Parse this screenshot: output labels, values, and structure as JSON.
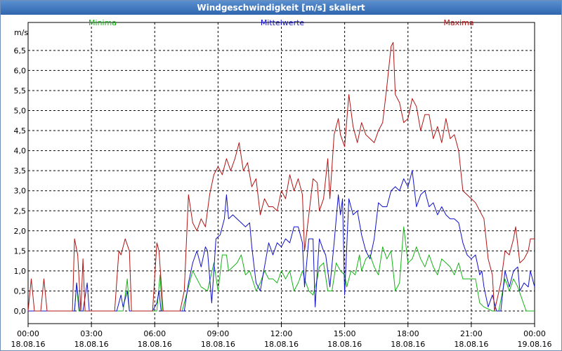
{
  "window": {
    "title": "Windgeschwindigkeit [m/s] skaliert"
  },
  "colors": {
    "minima": "#16b316",
    "mittelwerte": "#1111c8",
    "maxima": "#b01414",
    "grid": "#000000"
  },
  "chart_data": {
    "type": "line",
    "title": "Windgeschwindigkeit [m/s] skaliert",
    "ylabel": "m/s",
    "ylim": [
      0,
      7
    ],
    "y_ticks": [
      "0,0",
      "0,5",
      "1,0",
      "1,5",
      "2,0",
      "2,5",
      "3,0",
      "3,5",
      "4,0",
      "4,5",
      "5,0",
      "5,5",
      "6,0",
      "6,5"
    ],
    "x_ticks": [
      {
        "time": "00:00",
        "date": "18.08.16"
      },
      {
        "time": "03:00",
        "date": "18.08.16"
      },
      {
        "time": "06:00",
        "date": "18.08.16"
      },
      {
        "time": "09:00",
        "date": "18.08.16"
      },
      {
        "time": "12:00",
        "date": "18.08.16"
      },
      {
        "time": "15:00",
        "date": "18.08.16"
      },
      {
        "time": "18:00",
        "date": "18.08.16"
      },
      {
        "time": "21:00",
        "date": "18.08.16"
      },
      {
        "time": "00:00",
        "date": "19.08.16"
      }
    ],
    "x_unit": "hours since 18.08.16 00:00",
    "xlim": [
      0,
      24
    ],
    "series": [
      {
        "name": "Minima",
        "points": [
          [
            0,
            0
          ],
          [
            2.2,
            0
          ],
          [
            2.3,
            0.7
          ],
          [
            2.4,
            0
          ],
          [
            4.5,
            0
          ],
          [
            4.7,
            0.8
          ],
          [
            4.8,
            0
          ],
          [
            6.1,
            0
          ],
          [
            6.25,
            0.9
          ],
          [
            6.35,
            0
          ],
          [
            7.3,
            0
          ],
          [
            7.6,
            0.6
          ],
          [
            7.8,
            1.0
          ],
          [
            8,
            0.8
          ],
          [
            8.2,
            0.6
          ],
          [
            8.5,
            0.5
          ],
          [
            8.8,
            1.2
          ],
          [
            9,
            0.5
          ],
          [
            9.2,
            1.4
          ],
          [
            9.4,
            1.4
          ],
          [
            9.5,
            1.0
          ],
          [
            9.7,
            1.1
          ],
          [
            9.9,
            1.2
          ],
          [
            10.1,
            1.4
          ],
          [
            10.3,
            0.9
          ],
          [
            10.5,
            1.0
          ],
          [
            10.8,
            0.5
          ],
          [
            11,
            0.7
          ],
          [
            11.2,
            1.0
          ],
          [
            11.4,
            0.8
          ],
          [
            11.6,
            0.8
          ],
          [
            11.8,
            0.7
          ],
          [
            12,
            1.0
          ],
          [
            12.2,
            0.8
          ],
          [
            12.4,
            1.0
          ],
          [
            12.6,
            0.5
          ],
          [
            12.8,
            0.7
          ],
          [
            13,
            1.0
          ],
          [
            13.1,
            0.8
          ],
          [
            13.3,
            0.5
          ],
          [
            13.5,
            0.4
          ],
          [
            13.7,
            0.8
          ],
          [
            13.8,
            1.1
          ],
          [
            14,
            1.2
          ],
          [
            14.2,
            0.5
          ],
          [
            14.4,
            0.5
          ],
          [
            14.6,
            1.2
          ],
          [
            14.8,
            1.0
          ],
          [
            15,
            0.9
          ],
          [
            15.1,
            0.6
          ],
          [
            15.3,
            1.0
          ],
          [
            15.5,
            0.9
          ],
          [
            15.7,
            1.4
          ],
          [
            15.8,
            1.0
          ],
          [
            16,
            1.3
          ],
          [
            16.2,
            1.4
          ],
          [
            16.4,
            1.1
          ],
          [
            16.6,
            0.9
          ],
          [
            16.8,
            1.6
          ],
          [
            17,
            1.3
          ],
          [
            17.2,
            1.5
          ],
          [
            17.4,
            0.5
          ],
          [
            17.6,
            0.7
          ],
          [
            17.8,
            2.1
          ],
          [
            18,
            1.2
          ],
          [
            18.2,
            1.3
          ],
          [
            18.4,
            1.6
          ],
          [
            18.6,
            1.3
          ],
          [
            18.8,
            1.1
          ],
          [
            19,
            1.4
          ],
          [
            19.2,
            1.1
          ],
          [
            19.4,
            0.9
          ],
          [
            19.6,
            1.3
          ],
          [
            19.8,
            1.2
          ],
          [
            20,
            1.1
          ],
          [
            20.2,
            0.9
          ],
          [
            20.4,
            1.2
          ],
          [
            20.6,
            0.8
          ],
          [
            20.8,
            0.8
          ],
          [
            21,
            0.8
          ],
          [
            21.2,
            0.8
          ],
          [
            21.4,
            0.2
          ],
          [
            21.6,
            0.1
          ],
          [
            22,
            0
          ],
          [
            22.3,
            0
          ],
          [
            22.6,
            0.8
          ],
          [
            22.8,
            0.5
          ],
          [
            23,
            0.8
          ],
          [
            23.2,
            0.6
          ],
          [
            23.4,
            0.3
          ],
          [
            23.6,
            0
          ],
          [
            24,
            0
          ]
        ]
      },
      {
        "name": "Mittelwerte",
        "points": [
          [
            0,
            0
          ],
          [
            2.2,
            0
          ],
          [
            2.3,
            0.7
          ],
          [
            2.45,
            0
          ],
          [
            2.6,
            0
          ],
          [
            2.8,
            0.7
          ],
          [
            2.9,
            0
          ],
          [
            4.2,
            0
          ],
          [
            4.4,
            0.4
          ],
          [
            4.5,
            0.1
          ],
          [
            4.7,
            0.5
          ],
          [
            4.8,
            0
          ],
          [
            5.9,
            0
          ],
          [
            6.1,
            0.2
          ],
          [
            6.2,
            0.5
          ],
          [
            6.3,
            0
          ],
          [
            7.4,
            0
          ],
          [
            7.6,
            0.7
          ],
          [
            7.8,
            1.2
          ],
          [
            8,
            1.5
          ],
          [
            8.2,
            1.1
          ],
          [
            8.4,
            1.6
          ],
          [
            8.5,
            1.5
          ],
          [
            8.7,
            0.2
          ],
          [
            8.9,
            1.8
          ],
          [
            9.1,
            1.9
          ],
          [
            9.3,
            2.3
          ],
          [
            9.4,
            2.9
          ],
          [
            9.5,
            2.3
          ],
          [
            9.7,
            2.4
          ],
          [
            9.9,
            2.3
          ],
          [
            10.1,
            2.2
          ],
          [
            10.3,
            2.1
          ],
          [
            10.5,
            2.2
          ],
          [
            10.6,
            1.6
          ],
          [
            10.8,
            0.7
          ],
          [
            11,
            0.5
          ],
          [
            11.2,
            1.1
          ],
          [
            11.4,
            1.7
          ],
          [
            11.6,
            1.4
          ],
          [
            11.8,
            1.7
          ],
          [
            12,
            1.6
          ],
          [
            12.2,
            1.8
          ],
          [
            12.4,
            1.7
          ],
          [
            12.6,
            2.1
          ],
          [
            12.8,
            2.1
          ],
          [
            13,
            1.7
          ],
          [
            13.1,
            0.6
          ],
          [
            13.3,
            1.8
          ],
          [
            13.5,
            1.8
          ],
          [
            13.6,
            0.1
          ],
          [
            13.8,
            1.8
          ],
          [
            14,
            1.5
          ],
          [
            14.1,
            1.4
          ],
          [
            14.3,
            0.6
          ],
          [
            14.5,
            1.7
          ],
          [
            14.7,
            2.9
          ],
          [
            14.8,
            2.4
          ],
          [
            14.9,
            2.8
          ],
          [
            15,
            0.4
          ],
          [
            15.2,
            2.8
          ],
          [
            15.4,
            2.4
          ],
          [
            15.6,
            2.5
          ],
          [
            15.8,
            1.9
          ],
          [
            16,
            1.5
          ],
          [
            16.2,
            1.3
          ],
          [
            16.4,
            1.8
          ],
          [
            16.6,
            2.7
          ],
          [
            16.8,
            2.6
          ],
          [
            17,
            2.6
          ],
          [
            17.2,
            3.0
          ],
          [
            17.4,
            3.1
          ],
          [
            17.6,
            3.0
          ],
          [
            17.8,
            3.3
          ],
          [
            18,
            3.1
          ],
          [
            18.2,
            3.5
          ],
          [
            18.4,
            2.6
          ],
          [
            18.6,
            2.9
          ],
          [
            18.8,
            3.0
          ],
          [
            19,
            2.6
          ],
          [
            19.2,
            2.7
          ],
          [
            19.4,
            2.4
          ],
          [
            19.6,
            2.6
          ],
          [
            19.8,
            2.4
          ],
          [
            20,
            2.3
          ],
          [
            20.2,
            2.3
          ],
          [
            20.4,
            2.2
          ],
          [
            20.6,
            1.7
          ],
          [
            20.8,
            1.4
          ],
          [
            21,
            1.3
          ],
          [
            21.2,
            1.4
          ],
          [
            21.4,
            0.9
          ],
          [
            21.5,
            1.0
          ],
          [
            21.6,
            0.6
          ],
          [
            21.8,
            0.1
          ],
          [
            22,
            0.4
          ],
          [
            22.2,
            0
          ],
          [
            22.4,
            0
          ],
          [
            22.6,
            1.0
          ],
          [
            22.8,
            0.6
          ],
          [
            23,
            1.0
          ],
          [
            23.2,
            1.1
          ],
          [
            23.3,
            0.5
          ],
          [
            23.5,
            0.7
          ],
          [
            23.7,
            0.6
          ],
          [
            23.8,
            1.0
          ],
          [
            24,
            0.6
          ]
        ]
      },
      {
        "name": "Maxima",
        "points": [
          [
            0,
            0
          ],
          [
            0.15,
            0.8
          ],
          [
            0.3,
            0
          ],
          [
            0.6,
            0
          ],
          [
            0.75,
            0.8
          ],
          [
            0.9,
            0
          ],
          [
            2.1,
            0
          ],
          [
            2.2,
            1.8
          ],
          [
            2.35,
            1.4
          ],
          [
            2.5,
            0
          ],
          [
            2.6,
            1.3
          ],
          [
            2.7,
            0
          ],
          [
            4.1,
            0
          ],
          [
            4.3,
            1.5
          ],
          [
            4.4,
            1.4
          ],
          [
            4.6,
            1.8
          ],
          [
            4.8,
            1.5
          ],
          [
            4.9,
            0
          ],
          [
            5.9,
            0
          ],
          [
            6.1,
            1.7
          ],
          [
            6.2,
            1.5
          ],
          [
            6.4,
            0
          ],
          [
            7.2,
            0
          ],
          [
            7.4,
            0.5
          ],
          [
            7.6,
            2.9
          ],
          [
            7.8,
            2.2
          ],
          [
            8,
            2.0
          ],
          [
            8.2,
            2.3
          ],
          [
            8.4,
            2.1
          ],
          [
            8.6,
            2.9
          ],
          [
            8.8,
            3.4
          ],
          [
            9,
            3.6
          ],
          [
            9.2,
            3.4
          ],
          [
            9.4,
            3.8
          ],
          [
            9.6,
            3.5
          ],
          [
            9.8,
            3.8
          ],
          [
            10,
            4.2
          ],
          [
            10.2,
            3.5
          ],
          [
            10.4,
            3.7
          ],
          [
            10.6,
            3.1
          ],
          [
            10.8,
            3.3
          ],
          [
            11,
            2.4
          ],
          [
            11.2,
            2.8
          ],
          [
            11.4,
            2.6
          ],
          [
            11.6,
            2.6
          ],
          [
            11.8,
            2.5
          ],
          [
            12,
            3.0
          ],
          [
            12.2,
            2.8
          ],
          [
            12.4,
            3.4
          ],
          [
            12.6,
            3.0
          ],
          [
            12.8,
            3.3
          ],
          [
            13,
            2.9
          ],
          [
            13.1,
            1.5
          ],
          [
            13.3,
            2.4
          ],
          [
            13.5,
            3.3
          ],
          [
            13.7,
            3.2
          ],
          [
            13.8,
            2.5
          ],
          [
            14,
            2.8
          ],
          [
            14.2,
            3.8
          ],
          [
            14.3,
            2.8
          ],
          [
            14.5,
            4.4
          ],
          [
            14.7,
            4.8
          ],
          [
            14.8,
            4.4
          ],
          [
            15,
            4.1
          ],
          [
            15.2,
            5.4
          ],
          [
            15.4,
            4.6
          ],
          [
            15.6,
            4.2
          ],
          [
            15.8,
            4.7
          ],
          [
            16,
            4.4
          ],
          [
            16.2,
            4.3
          ],
          [
            16.4,
            4.2
          ],
          [
            16.6,
            4.5
          ],
          [
            16.8,
            4.7
          ],
          [
            17,
            5.6
          ],
          [
            17.2,
            6.6
          ],
          [
            17.3,
            6.7
          ],
          [
            17.4,
            5.4
          ],
          [
            17.6,
            5.2
          ],
          [
            17.8,
            4.7
          ],
          [
            18,
            4.8
          ],
          [
            18.2,
            5.3
          ],
          [
            18.4,
            5.1
          ],
          [
            18.6,
            4.5
          ],
          [
            18.8,
            4.9
          ],
          [
            19,
            4.9
          ],
          [
            19.2,
            4.3
          ],
          [
            19.4,
            4.6
          ],
          [
            19.6,
            4.2
          ],
          [
            19.8,
            4.8
          ],
          [
            20,
            4.3
          ],
          [
            20.2,
            4.4
          ],
          [
            20.4,
            4.0
          ],
          [
            20.6,
            3.0
          ],
          [
            20.8,
            2.9
          ],
          [
            21,
            2.8
          ],
          [
            21.2,
            2.7
          ],
          [
            21.4,
            2.5
          ],
          [
            21.6,
            2.3
          ],
          [
            21.8,
            1.3
          ],
          [
            22,
            0.9
          ],
          [
            22.1,
            0
          ],
          [
            22.4,
            0.7
          ],
          [
            22.6,
            1.5
          ],
          [
            22.8,
            1.4
          ],
          [
            23,
            1.8
          ],
          [
            23.1,
            2.1
          ],
          [
            23.3,
            1.2
          ],
          [
            23.5,
            1.3
          ],
          [
            23.7,
            1.5
          ],
          [
            23.8,
            1.8
          ],
          [
            24,
            1.8
          ]
        ]
      }
    ]
  }
}
